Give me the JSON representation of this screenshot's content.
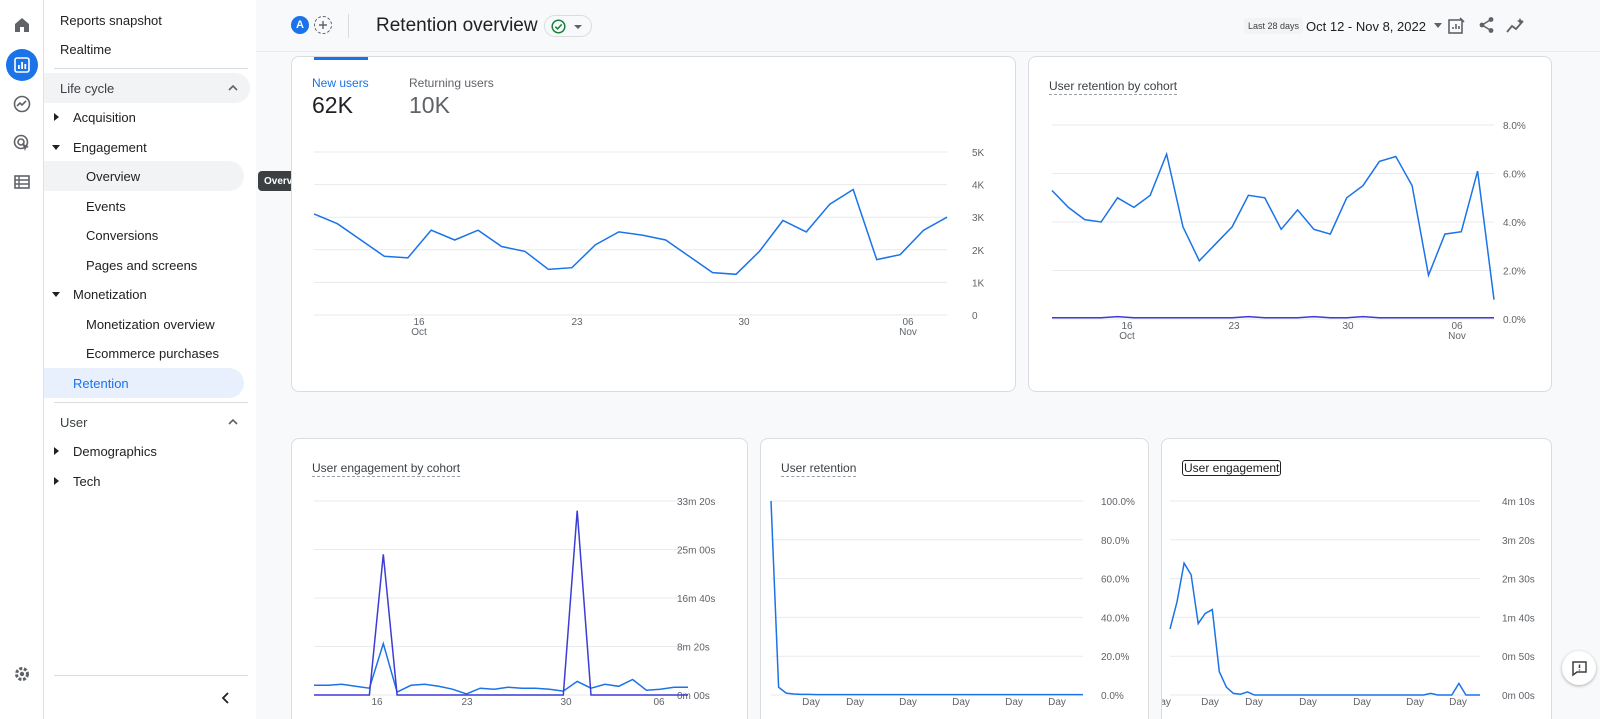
{
  "colors": {
    "accent": "#1a73e8",
    "series_secondary": "#3c3cd6",
    "active_bg": "#e8f0fe"
  },
  "rail": {
    "icons": [
      "home-icon",
      "reports-icon",
      "explore-icon",
      "advertising-icon",
      "configure-icon",
      "settings-icon"
    ]
  },
  "sidebar": {
    "reports_snapshot": "Reports snapshot",
    "realtime": "Realtime",
    "lifecycle": {
      "label": "Life cycle",
      "acquisition": "Acquisition",
      "engagement": "Engagement",
      "overview": "Overview",
      "events": "Events",
      "conversions": "Conversions",
      "pages_screens": "Pages and screens",
      "monetization": "Monetization",
      "monetization_overview": "Monetization overview",
      "ecommerce": "Ecommerce purchases",
      "retention": "Retention"
    },
    "user": {
      "label": "User",
      "demographics": "Demographics",
      "tech": "Tech"
    },
    "tooltip": "Overview"
  },
  "header": {
    "avatar": "A",
    "title": "Retention overview",
    "date_prefix": "Last 28 days",
    "date_range": "Oct 12 - Nov 8, 2022"
  },
  "card_users": {
    "tab_new_label": "New users",
    "tab_new_value": "62K",
    "tab_returning_label": "Returning users",
    "tab_returning_value": "10K"
  },
  "chart_data": [
    {
      "type": "line",
      "name": "users-chart",
      "x_tick_labels": [
        [
          "16",
          "Oct"
        ],
        [
          "23",
          ""
        ],
        [
          "30",
          ""
        ],
        [
          "06",
          "Nov"
        ]
      ],
      "y_tick_labels": [
        "5K",
        "4K",
        "3K",
        "2K",
        "1K",
        "0"
      ],
      "ylim": [
        0,
        5000
      ],
      "series": [
        {
          "values": [
            3100,
            2800,
            2300,
            1800,
            1750,
            2600,
            2300,
            2600,
            2100,
            1950,
            1400,
            1450,
            2150,
            2550,
            2450,
            2300,
            1800,
            1300,
            1250,
            1950,
            2900,
            2550,
            3400,
            3850,
            1700,
            1850,
            2600,
            3000
          ]
        }
      ]
    },
    {
      "type": "line",
      "name": "retention-cohort-chart",
      "title": "User retention by cohort",
      "x_tick_labels": [
        [
          "16",
          "Oct"
        ],
        [
          "23",
          ""
        ],
        [
          "30",
          ""
        ],
        [
          "06",
          "Nov"
        ]
      ],
      "y_tick_labels": [
        "8.0%",
        "6.0%",
        "4.0%",
        "2.0%",
        "0.0%"
      ],
      "ylim": [
        0,
        8
      ],
      "series": [
        {
          "values": [
            5.3,
            4.6,
            4.1,
            4.0,
            5.0,
            4.6,
            5.1,
            6.8,
            3.8,
            2.4,
            3.1,
            3.8,
            5.1,
            5.0,
            3.7,
            4.5,
            3.7,
            3.5,
            5.0,
            5.5,
            6.5,
            6.7,
            5.5,
            1.8,
            3.5,
            3.6,
            6.1,
            0.8
          ]
        },
        {
          "values": [
            0.05,
            0.05,
            0.05,
            0.05,
            0.1,
            0.05,
            0.05,
            0.05,
            0.05,
            0.05,
            0.05,
            0.05,
            0.1,
            0.05,
            0.05,
            0.05,
            0.1,
            0.05,
            0.05,
            0.1,
            0.05,
            0.05,
            0.05,
            0.05,
            0.05,
            0.05,
            0.05,
            0.05
          ]
        }
      ]
    },
    {
      "type": "line",
      "name": "engagement-cohort-chart",
      "title": "User engagement by cohort",
      "x_tick_labels": [
        [
          "16",
          ""
        ],
        [
          "23",
          ""
        ],
        [
          "30",
          ""
        ],
        [
          "06",
          ""
        ]
      ],
      "y_tick_labels": [
        "33m 20s",
        "25m 00s",
        "16m 40s",
        "8m 20s",
        "0m 00s"
      ],
      "ylim": [
        0,
        2000
      ],
      "series": [
        {
          "values": [
            100,
            100,
            110,
            90,
            70,
            530,
            30,
            100,
            110,
            90,
            60,
            10,
            70,
            60,
            80,
            70,
            70,
            60,
            40,
            140,
            70,
            110,
            90,
            160,
            50,
            60,
            80,
            80
          ]
        },
        {
          "values": [
            0,
            0,
            0,
            0,
            0,
            1450,
            0,
            0,
            0,
            0,
            0,
            0,
            0,
            0,
            0,
            0,
            0,
            0,
            0,
            1900,
            0,
            0,
            0,
            0,
            0,
            0,
            0,
            0
          ]
        }
      ]
    },
    {
      "type": "line",
      "name": "retention-chart",
      "title": "User retention",
      "x_tick_labels": [
        [
          "Day",
          ""
        ],
        [
          "Day",
          ""
        ],
        [
          "Day",
          ""
        ],
        [
          "Day",
          ""
        ],
        [
          "Day",
          ""
        ],
        [
          "Day",
          ""
        ]
      ],
      "y_tick_labels": [
        "100.0%",
        "80.0%",
        "60.0%",
        "40.0%",
        "20.0%",
        "0.0%"
      ],
      "ylim": [
        0,
        100
      ],
      "series": [
        {
          "values": [
            100,
            4,
            1,
            0.5,
            0.3,
            0.3,
            0.2,
            0.2,
            0.2,
            0.2,
            0.2,
            0.2,
            0.2,
            0.2,
            0.2,
            0.2,
            0.2,
            0.2,
            0.2,
            0.2,
            0.2,
            0.2,
            0.2,
            0.2,
            0.2,
            0.2,
            0.2,
            0.2,
            0.2,
            0.2,
            0.2,
            0.2,
            0.2,
            0.2,
            0.2,
            0.2,
            0.2,
            0.2,
            0.2,
            0.2,
            0.2,
            0.2
          ]
        }
      ]
    },
    {
      "type": "line",
      "name": "engagement-chart",
      "title": "User engagement",
      "x_tick_labels": [
        [
          "Day",
          ""
        ],
        [
          "Day",
          ""
        ],
        [
          "Day",
          ""
        ],
        [
          "Day",
          ""
        ],
        [
          "Day",
          ""
        ],
        [
          "Day",
          ""
        ],
        [
          "Day",
          ""
        ]
      ],
      "y_tick_labels": [
        "4m 10s",
        "3m 20s",
        "2m 30s",
        "1m 40s",
        "0m 50s",
        "0m 00s"
      ],
      "ylim": [
        0,
        250
      ],
      "series": [
        {
          "values": [
            85,
            120,
            170,
            155,
            92,
            105,
            110,
            30,
            10,
            2,
            1,
            4,
            0,
            0,
            0,
            0,
            0,
            0,
            0,
            0,
            0,
            0,
            0,
            0,
            0,
            0,
            0,
            0,
            0,
            0,
            0,
            0,
            0,
            0,
            0,
            0,
            0,
            2,
            0,
            0,
            0,
            15,
            0,
            0,
            0
          ]
        }
      ]
    }
  ]
}
